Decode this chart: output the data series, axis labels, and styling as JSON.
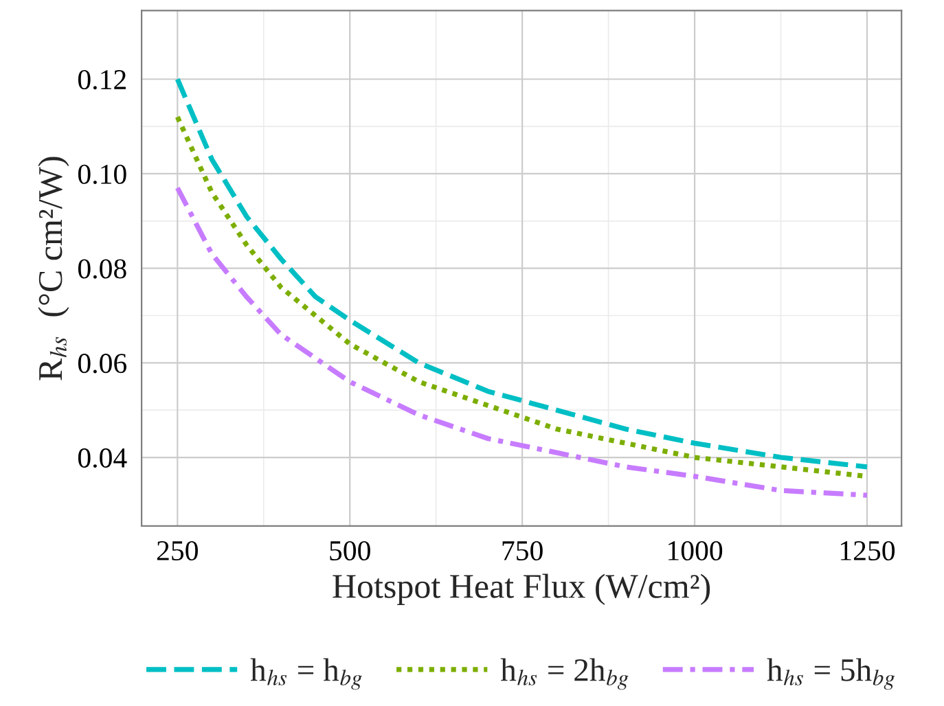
{
  "chart_data": {
    "type": "line",
    "xlabel": "Hotspot Heat Flux (W/cm²)",
    "ylabel": "R$_{hs}$  (°C cm²/W)",
    "x": [
      250,
      300,
      350,
      400,
      450,
      500,
      600,
      700,
      800,
      900,
      1000,
      1125,
      1250
    ],
    "series": [
      {
        "name": "h$_{hs}$ = h$_{bg}$",
        "color": "#00bfc4",
        "line_style": "dashed",
        "values": [
          0.12,
          0.103,
          0.091,
          0.082,
          0.074,
          0.069,
          0.06,
          0.054,
          0.05,
          0.046,
          0.043,
          0.04,
          0.038
        ]
      },
      {
        "name": "h$_{hs}$ = 2h$_{bg}$",
        "color": "#7cae00",
        "line_style": "dotted",
        "values": [
          0.112,
          0.096,
          0.085,
          0.076,
          0.07,
          0.064,
          0.056,
          0.051,
          0.046,
          0.043,
          0.04,
          0.038,
          0.036
        ]
      },
      {
        "name": "h$_{hs}$ = 5h$_{bg}$",
        "color": "#c77cff",
        "line_style": "dashdot",
        "values": [
          0.097,
          0.083,
          0.074,
          0.066,
          0.061,
          0.056,
          0.049,
          0.044,
          0.041,
          0.038,
          0.036,
          0.033,
          0.032
        ]
      }
    ],
    "xlim": [
      198,
      1300
    ],
    "xticks": [
      250,
      500,
      750,
      1000,
      1250
    ],
    "ylim": [
      0.0255,
      0.1345
    ],
    "yticks": [
      0.04,
      0.06,
      0.08,
      {
        "value": 0.1,
        "label": "0.10"
      },
      0.12
    ],
    "grid": true,
    "legend": "bottom",
    "marker": "none"
  }
}
